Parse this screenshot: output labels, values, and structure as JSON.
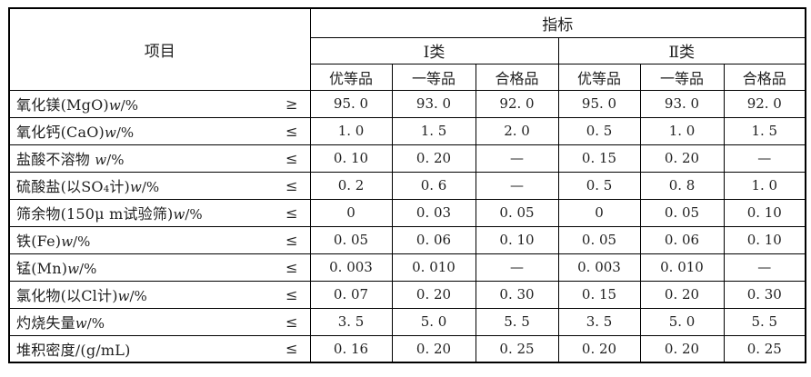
{
  "table": {
    "header": {
      "item": "项目",
      "indicator": "指标",
      "class_1": "Ⅰ类",
      "class_2": "Ⅱ类",
      "grades": [
        "优等品",
        "一等品",
        "合格品"
      ]
    },
    "rows": [
      {
        "label": "氧化镁(MgO)",
        "w": "w",
        "unit": "/%",
        "relation": "≥",
        "values": [
          "95. 0",
          "93. 0",
          "92. 0",
          "95. 0",
          "93. 0",
          "92. 0"
        ]
      },
      {
        "label": "氧化钙(CaO)",
        "w": "w",
        "unit": "/%",
        "relation": "≤",
        "values": [
          "1. 0",
          "1. 5",
          "2. 0",
          "0. 5",
          "1. 0",
          "1. 5"
        ]
      },
      {
        "label": "盐酸不溶物 ",
        "w": "w",
        "unit": "/%",
        "relation": "≤",
        "values": [
          "0. 10",
          "0. 20",
          "—",
          "0. 15",
          "0. 20",
          "—"
        ]
      },
      {
        "label": "硫酸盐(以SO₄计)",
        "w": "w",
        "unit": "/%",
        "relation": "≤",
        "values": [
          "0. 2",
          "0. 6",
          "—",
          "0. 5",
          "0. 8",
          "1. 0"
        ]
      },
      {
        "label": "筛余物(150μ m试验筛)",
        "w": "w",
        "unit": "/%",
        "relation": "≤",
        "values": [
          "0",
          "0. 03",
          "0. 05",
          "0",
          "0. 05",
          "0. 10"
        ]
      },
      {
        "label": "铁(Fe)",
        "w": "w",
        "unit": "/%",
        "relation": "≤",
        "values": [
          "0. 05",
          "0. 06",
          "0. 10",
          "0. 05",
          "0. 06",
          "0. 10"
        ]
      },
      {
        "label": "锰(Mn)",
        "w": "w",
        "unit": "/%",
        "relation": "≤",
        "values": [
          "0. 003",
          "0. 010",
          "—",
          "0. 003",
          "0. 010",
          "—"
        ]
      },
      {
        "label": "氯化物(以Cl计)",
        "w": "w",
        "unit": "/%",
        "relation": "≤",
        "values": [
          "0. 07",
          "0. 20",
          "0. 30",
          "0. 15",
          "0. 20",
          "0. 30"
        ]
      },
      {
        "label": "灼烧失量",
        "w": "w",
        "unit": "/%",
        "relation": "≤",
        "values": [
          "3. 5",
          "5. 0",
          "5. 5",
          "3. 5",
          "5. 0",
          "5. 5"
        ]
      },
      {
        "label": "堆积密度/(g/mL)",
        "w": "",
        "unit": "",
        "relation": "≤",
        "values": [
          "0. 16",
          "0. 20",
          "0. 25",
          "0. 20",
          "0. 20",
          "0. 25"
        ]
      }
    ]
  }
}
